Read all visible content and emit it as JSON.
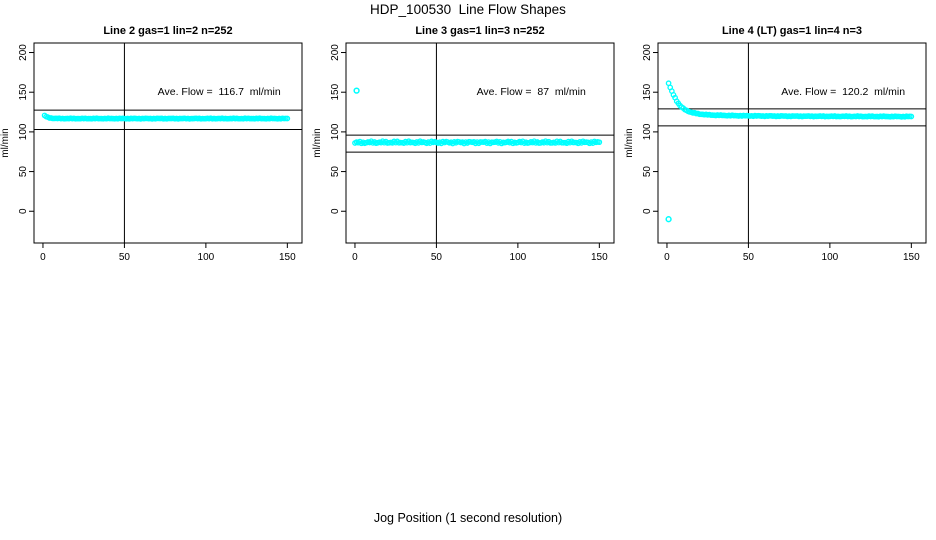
{
  "chart_data": {
    "type": "scatter",
    "title": "HDP_100530  Line Flow Shapes",
    "xlabel": "Jog Position (1 second resolution)",
    "ylabel": "ml/min",
    "point_color": "#00ffff",
    "axis_color": "#000000",
    "grid": false,
    "xticks": [
      0,
      50,
      100,
      150
    ],
    "yticks": [
      0,
      50,
      100,
      150,
      200
    ],
    "xlim": [
      -5.5,
      159
    ],
    "ylim": [
      -40,
      212
    ],
    "vline_x": 50,
    "annotation_value_y": 150,
    "panels": [
      {
        "title": "Line 2 gas=1 lin=2 n=252",
        "annotation": "Ave. Flow =  116.7  ml/min",
        "ave_flow": 116.7,
        "n": 252,
        "hlines": [
          127.5,
          103.0
        ],
        "x_start": 1,
        "x_end": 150,
        "noise_amp": 0.4,
        "keypoints": [
          [
            1,
            120.5
          ],
          [
            2,
            119.2
          ],
          [
            3,
            118.3
          ],
          [
            4,
            117.8
          ],
          [
            5,
            117.4
          ],
          [
            7,
            117.0
          ],
          [
            9,
            116.9
          ],
          [
            12,
            116.8
          ],
          [
            20,
            116.8
          ],
          [
            60,
            116.8
          ],
          [
            100,
            116.8
          ],
          [
            150,
            116.8
          ]
        ],
        "outliers": []
      },
      {
        "title": "Line 3 gas=1 lin=3 n=252",
        "annotation": "Ave. Flow =  87  ml/min",
        "ave_flow": 87,
        "n": 252,
        "hlines": [
          96.0,
          74.5
        ],
        "x_start": 0,
        "x_end": 150,
        "noise_amp": 1.5,
        "keypoints": [
          [
            0,
            86.0
          ],
          [
            2,
            86.5
          ],
          [
            10,
            86.8
          ],
          [
            50,
            86.8
          ],
          [
            100,
            86.8
          ],
          [
            150,
            86.8
          ]
        ],
        "outliers": [
          [
            1,
            152
          ]
        ]
      },
      {
        "title": "Line 4 (LT) gas=1 lin=4 n=3",
        "annotation": "Ave. Flow =  120.2  ml/min",
        "ave_flow": 120.2,
        "n": 3,
        "hlines": [
          129.0,
          107.5
        ],
        "x_start": 1,
        "x_end": 150,
        "noise_amp": 0.5,
        "keypoints": [
          [
            1,
            161
          ],
          [
            2,
            156
          ],
          [
            3,
            151
          ],
          [
            4,
            147
          ],
          [
            5,
            143
          ],
          [
            6,
            139
          ],
          [
            7,
            136
          ],
          [
            8,
            133
          ],
          [
            10,
            129.5
          ],
          [
            12,
            127
          ],
          [
            14,
            125.3
          ],
          [
            16,
            124
          ],
          [
            18,
            123.2
          ],
          [
            20,
            122.5
          ],
          [
            25,
            121.5
          ],
          [
            30,
            121
          ],
          [
            40,
            120.5
          ],
          [
            60,
            120
          ],
          [
            90,
            119.7
          ],
          [
            120,
            119.5
          ],
          [
            150,
            119.3
          ]
        ],
        "outliers": [
          [
            1,
            -10
          ]
        ]
      }
    ]
  }
}
